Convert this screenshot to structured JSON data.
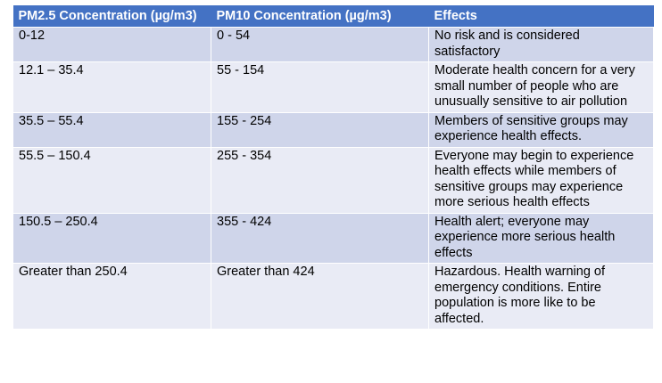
{
  "table": {
    "headers": [
      "PM2.5 Concentration (µg/m3)",
      "PM10 Concentration (µg/m3)",
      "Effects"
    ],
    "rows": [
      [
        "0-12",
        "0 - 54",
        "No risk and is considered satisfactory"
      ],
      [
        "12.1 – 35.4",
        "55 - 154",
        "Moderate health concern for a very small number of people who are unusually sensitive to air pollution"
      ],
      [
        "35.5 – 55.4",
        "155 - 254",
        "Members of sensitive groups may experience health effects."
      ],
      [
        "55.5 – 150.4",
        "255 - 354",
        "Everyone may begin to experience health effects while members of sensitive groups may experience more serious health effects"
      ],
      [
        "150.5 – 250.4",
        "355 - 424",
        "Health alert; everyone may experience more serious health effects"
      ],
      [
        "Greater than 250.4",
        "Greater than 424",
        "Hazardous. Health warning of emergency conditions. Entire population is more like to be affected."
      ]
    ]
  },
  "colors": {
    "header_bg": "#4472c4",
    "band_bg": "#cfd5ea",
    "plain_bg": "#e9ebf5"
  }
}
